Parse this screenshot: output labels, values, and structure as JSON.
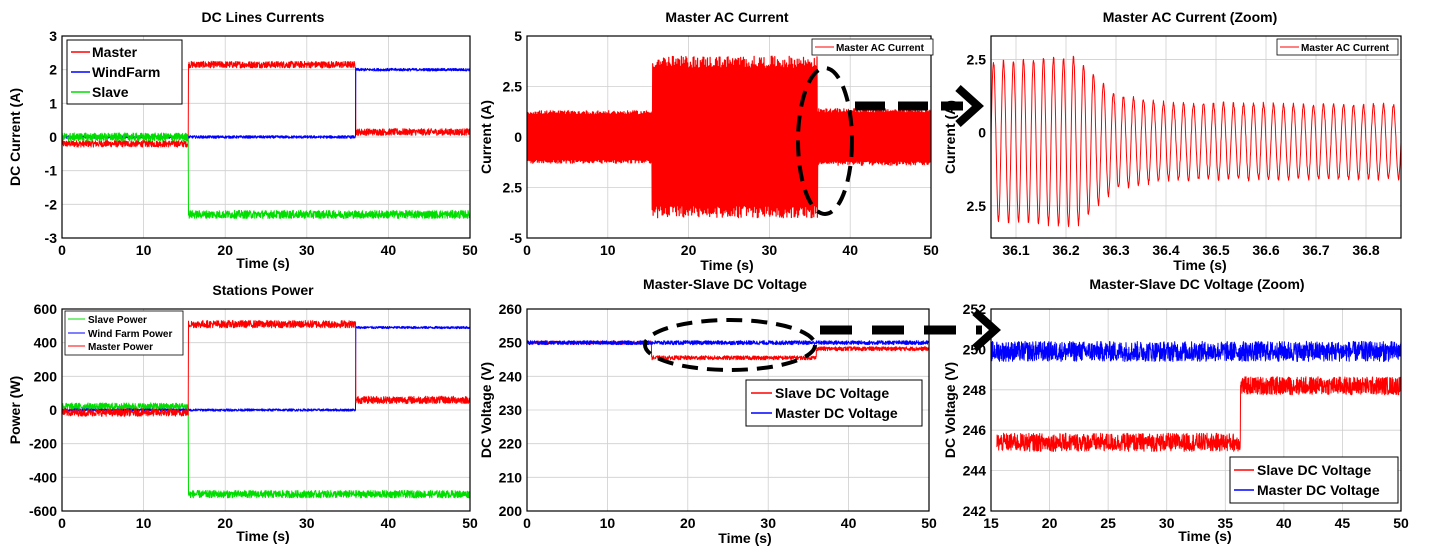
{
  "chart_data": [
    {
      "type": "line",
      "title": "DC Lines Currents",
      "xlabel": "Time (s)",
      "ylabel": "DC Current (A)",
      "xlim": [
        0,
        50
      ],
      "ylim": [
        -3,
        3
      ],
      "xticks": [
        "0",
        "10",
        "20",
        "30",
        "40",
        "50"
      ],
      "yticks": [
        "3",
        "2",
        "1",
        "0",
        "-1",
        "-2",
        "-3"
      ],
      "grid": true,
      "legend_position": "top-left",
      "series": [
        {
          "name": "Master",
          "color": "#ff0000",
          "segments": [
            {
              "x0": 0,
              "x1": 15.5,
              "y": -0.2,
              "noise": 0.1
            },
            {
              "x0": 15.5,
              "x1": 36,
              "y": 2.15,
              "noise": 0.1
            },
            {
              "x0": 36,
              "x1": 50,
              "y": 0.15,
              "noise": 0.1
            }
          ]
        },
        {
          "name": "WindFarm",
          "color": "#0000ff",
          "segments": [
            {
              "x0": 0,
              "x1": 36,
              "y": 0,
              "noise": 0.04
            },
            {
              "x0": 36,
              "x1": 50,
              "y": 2.0,
              "noise": 0.04
            }
          ]
        },
        {
          "name": "Slave",
          "color": "#00dd00",
          "segments": [
            {
              "x0": 0,
              "x1": 15.5,
              "y": 0,
              "noise": 0.12
            },
            {
              "x0": 15.5,
              "x1": 50,
              "y": -2.3,
              "noise": 0.12
            }
          ]
        }
      ]
    },
    {
      "type": "line",
      "title": "Master AC Current",
      "xlabel": "Time (s)",
      "ylabel": "Current (A)",
      "xlim": [
        0,
        50
      ],
      "ylim": [
        -5,
        5
      ],
      "xticks": [
        "0",
        "10",
        "20",
        "30",
        "40",
        "50"
      ],
      "yticks": [
        "5",
        "2.5",
        "0",
        "2.5",
        "-5"
      ],
      "grid": true,
      "legend_position": "top-right",
      "series": [
        {
          "name": "Master AC Current",
          "color": "#ff0000",
          "amplitude_segments": [
            {
              "x0": 0,
              "x1": 15.5,
              "amp": 1.3
            },
            {
              "x0": 15.5,
              "x1": 36,
              "amp": 4.0
            },
            {
              "x0": 36,
              "x1": 50,
              "amp": 1.4
            }
          ]
        }
      ]
    },
    {
      "type": "line",
      "title": "Master AC Current (Zoom)",
      "xlabel": "Time (s)",
      "ylabel": "Current (A)",
      "xlim": [
        36.05,
        36.87
      ],
      "ylim": [
        -3.6,
        3.3
      ],
      "xticks": [
        "36.1",
        "36.2",
        "36.3",
        "36.4",
        "36.5",
        "36.6",
        "36.7",
        "36.8"
      ],
      "yticks": [
        "2.5",
        "0",
        "2.5"
      ],
      "grid": true,
      "legend_position": "top-right",
      "series": [
        {
          "name": "Master AC Current",
          "color": "#ff0000",
          "frequency_hz": 50,
          "envelope": [
            [
              36.05,
              2.7
            ],
            [
              36.22,
              2.9
            ],
            [
              36.3,
              1.6
            ],
            [
              36.4,
              1.3
            ],
            [
              36.87,
              1.25
            ]
          ],
          "offset": -0.3
        }
      ]
    },
    {
      "type": "line",
      "title": "Stations Power",
      "xlabel": "Time (s)",
      "ylabel": "Power (W)",
      "xlim": [
        0,
        50
      ],
      "ylim": [
        -600,
        600
      ],
      "xticks": [
        "0",
        "10",
        "20",
        "30",
        "40",
        "50"
      ],
      "yticks": [
        "600",
        "400",
        "200",
        "0",
        "-200",
        "-400",
        "-600"
      ],
      "grid": true,
      "legend_position": "top-left",
      "series": [
        {
          "name": "Slave Power",
          "color": "#00dd00",
          "segments": [
            {
              "x0": 0,
              "x1": 15.5,
              "y": 20,
              "noise": 22
            },
            {
              "x0": 15.5,
              "x1": 50,
              "y": -500,
              "noise": 22
            }
          ]
        },
        {
          "name": "Wind Farm Power",
          "color": "#0000ff",
          "segments": [
            {
              "x0": 0,
              "x1": 36,
              "y": 0,
              "noise": 7
            },
            {
              "x0": 36,
              "x1": 50,
              "y": 490,
              "noise": 7
            }
          ]
        },
        {
          "name": "Master Power",
          "color": "#ff0000",
          "segments": [
            {
              "x0": 0,
              "x1": 15.5,
              "y": -15,
              "noise": 22
            },
            {
              "x0": 15.5,
              "x1": 36,
              "y": 510,
              "noise": 22
            },
            {
              "x0": 36,
              "x1": 50,
              "y": 60,
              "noise": 22
            }
          ]
        }
      ]
    },
    {
      "type": "line",
      "title": "Master-Slave DC Voltage",
      "xlabel": "Time (s)",
      "ylabel": "DC Voltage (V)",
      "xlim": [
        0,
        50
      ],
      "ylim": [
        200,
        260
      ],
      "xticks": [
        "0",
        "10",
        "20",
        "30",
        "40",
        "50"
      ],
      "yticks": [
        "260",
        "250",
        "240",
        "230",
        "220",
        "210",
        "200"
      ],
      "grid": true,
      "legend_position": "middle-right",
      "series": [
        {
          "name": "Slave DC Voltage",
          "color": "#ff0000",
          "segments": [
            {
              "x0": 0,
              "x1": 15.5,
              "y": 250,
              "noise": 0.5
            },
            {
              "x0": 15.5,
              "x1": 36,
              "y": 245.5,
              "noise": 0.6
            },
            {
              "x0": 36,
              "x1": 50,
              "y": 248.2,
              "noise": 0.6
            }
          ]
        },
        {
          "name": "Master DC Voltage",
          "color": "#0000ff",
          "segments": [
            {
              "x0": 0,
              "x1": 50,
              "y": 250,
              "noise": 0.6
            }
          ]
        }
      ]
    },
    {
      "type": "line",
      "title": "Master-Slave DC Voltage (Zoom)",
      "xlabel": "Time (s)",
      "ylabel": "DC Voltage (V)",
      "xlim": [
        15,
        50
      ],
      "ylim": [
        242,
        252
      ],
      "xticks": [
        "15",
        "20",
        "25",
        "30",
        "35",
        "40",
        "45",
        "50"
      ],
      "yticks": [
        "252",
        "250",
        "248",
        "246",
        "244",
        "242"
      ],
      "grid": true,
      "legend_position": "bottom-right",
      "series": [
        {
          "name": "Slave DC Voltage",
          "color": "#ff0000",
          "segments": [
            {
              "x0": 15.5,
              "x1": 36.3,
              "y": 245.4,
              "noise": 0.45
            },
            {
              "x0": 36.3,
              "x1": 50,
              "y": 248.2,
              "noise": 0.45
            }
          ]
        },
        {
          "name": "Master DC Voltage",
          "color": "#0000ff",
          "segments": [
            {
              "x0": 15,
              "x1": 50,
              "y": 249.9,
              "noise": 0.5
            }
          ]
        }
      ]
    }
  ]
}
